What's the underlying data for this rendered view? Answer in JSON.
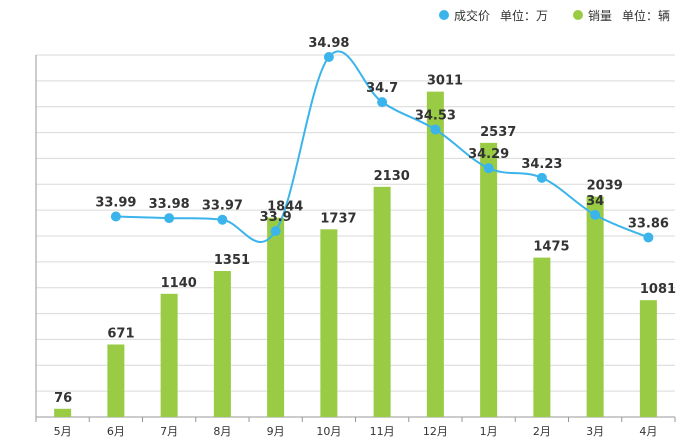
{
  "chart_data": {
    "type": "bar+line",
    "categories": [
      "5月",
      "6月",
      "7月",
      "8月",
      "9月",
      "10月",
      "11月",
      "12月",
      "1月",
      "2月",
      "3月",
      "4月"
    ],
    "series": [
      {
        "name": "成交价",
        "unit_label": "单位：万",
        "type": "line",
        "color": "#3bb4ec",
        "values": [
          null,
          33.99,
          33.98,
          33.97,
          33.9,
          34.98,
          34.7,
          34.53,
          34.29,
          34.23,
          34,
          33.86
        ],
        "labels": [
          "",
          "33.99",
          "33.98",
          "33.97",
          "33.9",
          "34.98",
          "34.7",
          "34.53",
          "34.29",
          "34.23",
          "34",
          "33.86"
        ]
      },
      {
        "name": "销量",
        "unit_label": "单位：辆",
        "type": "bar",
        "color": "#99cc44",
        "values": [
          76,
          671,
          1140,
          1351,
          1844,
          1737,
          2130,
          3011,
          2537,
          1475,
          2039,
          1081
        ],
        "labels": [
          "76",
          "671",
          "1140",
          "1351",
          "1844",
          "1737",
          "2130",
          "3011",
          "2537",
          "1475",
          "2039",
          "1081"
        ]
      }
    ],
    "grid": true,
    "legend_position": "top-right"
  }
}
